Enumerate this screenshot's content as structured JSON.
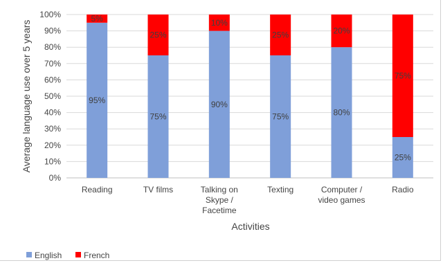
{
  "chart_data": {
    "type": "bar",
    "stacked": true,
    "percent_stacked": true,
    "categories": [
      "Reading",
      "TV films",
      "Talking on Skype / Facetime",
      "Texting",
      "Computer / video games",
      "Radio"
    ],
    "category_lines": [
      [
        "Reading"
      ],
      [
        "TV films"
      ],
      [
        "Talking on",
        "Skype /",
        "Facetime"
      ],
      [
        "Texting"
      ],
      [
        "Computer /",
        "video games"
      ],
      [
        "Radio"
      ]
    ],
    "series": [
      {
        "name": "English",
        "color": "#7f9fd9",
        "values": [
          95,
          75,
          90,
          75,
          80,
          25
        ],
        "labels": [
          "95%",
          "75%",
          "90%",
          "75%",
          "80%",
          "25%"
        ]
      },
      {
        "name": "French",
        "color": "#ff0000",
        "values": [
          5,
          25,
          10,
          25,
          20,
          75
        ],
        "labels": [
          "5%",
          "25%",
          "10%",
          "25%",
          "20%",
          "75%"
        ]
      }
    ],
    "title": "",
    "xlabel": "Activities",
    "ylabel": "Average language use over 5 years",
    "ylim": [
      0,
      100
    ],
    "yticks": [
      "0%",
      "10%",
      "20%",
      "30%",
      "40%",
      "50%",
      "60%",
      "70%",
      "80%",
      "90%",
      "100%"
    ],
    "grid": true,
    "legend_position": "bottom-left"
  }
}
